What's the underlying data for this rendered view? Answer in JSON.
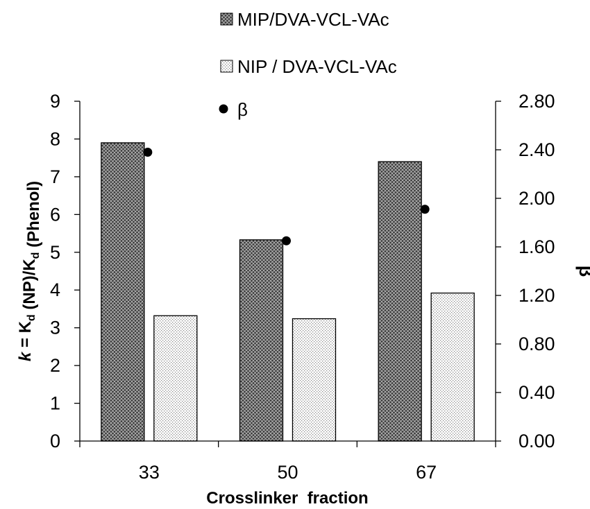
{
  "chart_data": {
    "type": "bar",
    "categories": [
      "33",
      "50",
      "67"
    ],
    "series": [
      {
        "name": "MIP/DVA-VCL-VAc",
        "values": [
          7.9,
          5.33,
          7.4
        ],
        "axis": "left",
        "pattern": "dark-crosshatch"
      },
      {
        "name": "NIP / DVA-VCL-VAc",
        "values": [
          3.32,
          3.24,
          3.92
        ],
        "axis": "left",
        "pattern": "light-dots"
      },
      {
        "name": "β",
        "values": [
          2.38,
          1.65,
          1.91
        ],
        "axis": "right",
        "marker": "filled-circle"
      }
    ],
    "xlabel": "Crosslinker  fraction",
    "ylabel": {
      "parts": [
        {
          "text": "k",
          "style": "italic"
        },
        {
          "text": " = K"
        },
        {
          "text": "d",
          "style": "subscript"
        },
        {
          "text": " (NP)/K"
        },
        {
          "text": "d",
          "style": "subscript"
        },
        {
          "text": " (Phenol)"
        }
      ]
    },
    "y2label": "β",
    "ylim": [
      0,
      9
    ],
    "y2lim": [
      0,
      2.8
    ],
    "yticks": [
      "0",
      "1",
      "2",
      "3",
      "4",
      "5",
      "6",
      "7",
      "8",
      "9"
    ],
    "y2ticks": [
      "0.00",
      "0.40",
      "0.80",
      "1.20",
      "1.60",
      "2.00",
      "2.40",
      "2.80"
    ],
    "grid": false,
    "legend_position": "top-center"
  },
  "colors": {
    "bar_dark_base": "#3a3a3a",
    "bar_dark_hatch": "#bdbdbd",
    "bar_light_base": "#ffffff",
    "bar_light_dot": "#8a8a8a",
    "marker": "#000000"
  }
}
